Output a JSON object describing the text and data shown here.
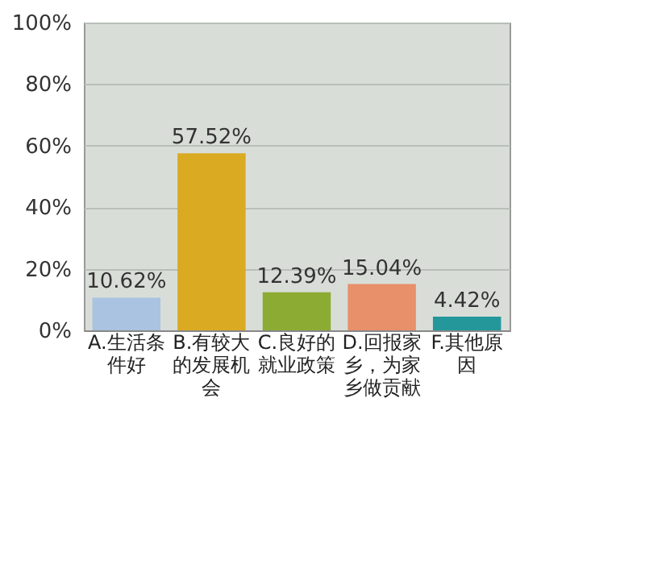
{
  "chart_data": {
    "type": "bar",
    "categories": [
      "A.生活条件好",
      "B.有较大的发展机会",
      "C.良好的就业政策",
      "D.回报家乡，为家乡做贡献",
      "F.其他原因"
    ],
    "values": [
      10.62,
      57.52,
      12.39,
      15.04,
      4.42
    ],
    "value_labels": [
      "10.62%",
      "57.52%",
      "12.39%",
      "15.04%",
      "4.42%"
    ],
    "colors": [
      "#a9c3e0",
      "#d9aa22",
      "#8cab32",
      "#e8906a",
      "#24979b"
    ],
    "ylim": [
      0,
      100
    ],
    "yticks": [
      {
        "value": 0,
        "label": "0%"
      },
      {
        "value": 20,
        "label": "20%"
      },
      {
        "value": 40,
        "label": "40%"
      },
      {
        "value": 60,
        "label": "60%"
      },
      {
        "value": 80,
        "label": "80%"
      },
      {
        "value": 100,
        "label": "100%"
      }
    ],
    "grid": "y"
  }
}
